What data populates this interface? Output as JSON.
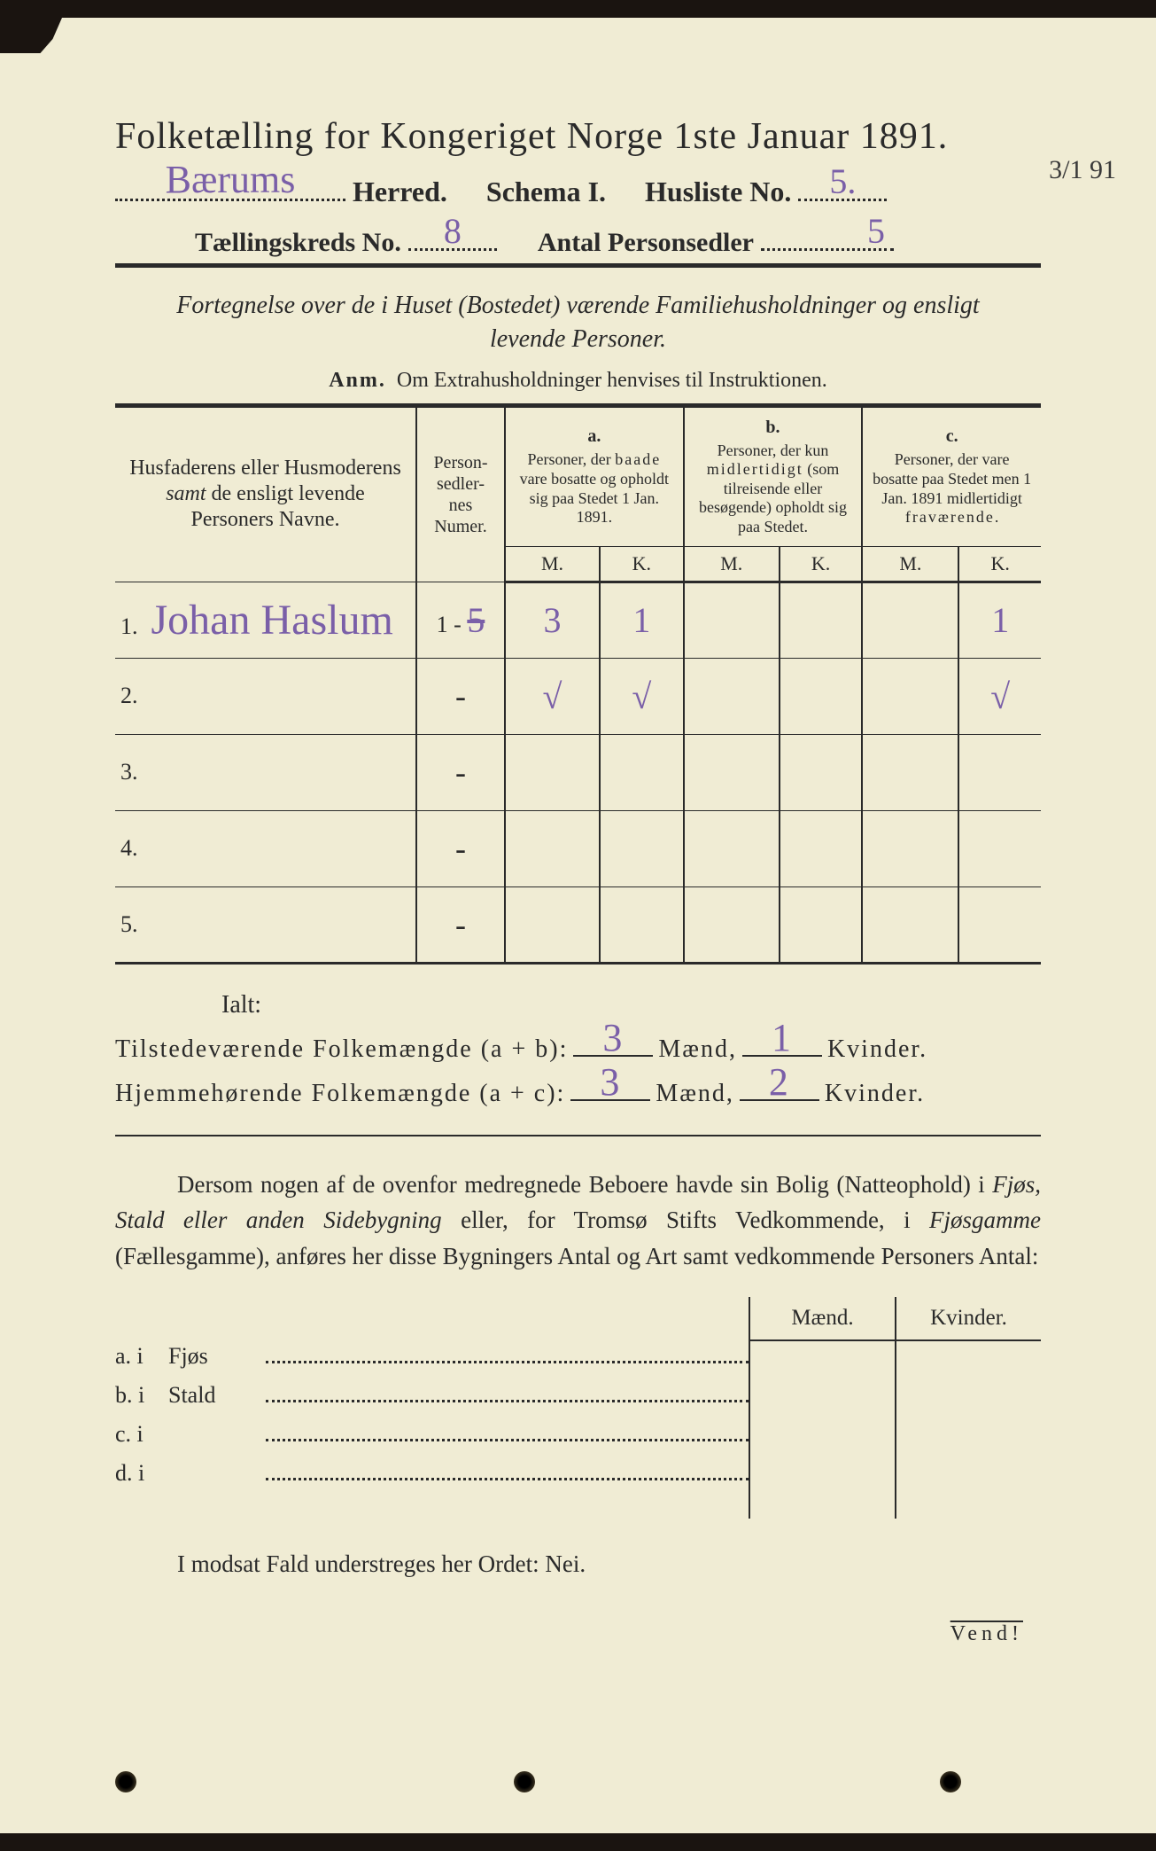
{
  "colors": {
    "paper": "#f0ecd4",
    "ink": "#2a2a2a",
    "handwriting": "#7a5fa8",
    "background": "#1a1410"
  },
  "typography": {
    "title_fontsize": 42,
    "header_fontsize": 32,
    "body_fontsize": 27,
    "hand_fontsize": 44
  },
  "margin_note": "3/1 91",
  "header": {
    "title": "Folketælling for Kongeriget Norge 1ste Januar 1891.",
    "herred_label": "Herred.",
    "herred_value": "Bærums",
    "schema_label": "Schema I.",
    "husliste_label": "Husliste No.",
    "husliste_value": "5.",
    "kreds_label": "Tællingskreds No.",
    "kreds_value": "8",
    "antal_label": "Antal Personsedler",
    "antal_value": "5"
  },
  "subtitle": "Fortegnelse over de i Huset (Bostedet) værende Familiehusholdninger og ensligt levende Personer.",
  "anm_label": "Anm.",
  "anm_text": "Om Extrahusholdninger henvises til Instruktionen.",
  "table": {
    "col_names": "Husfaderens eller Husmoderens <em>samt</em> de ensligt levende Personers Navne.",
    "col_num": "Person-<br>sedler-<br>nes<br>Numer.",
    "col_a_label": "a.",
    "col_a": "Personer, der <span class='spaced'>baade</span> vare bosatte og opholdt sig paa Stedet 1 Jan. 1891.",
    "col_b_label": "b.",
    "col_b": "Personer, der kun <span class='spaced'>midlertidigt</span> (som tilreisende eller besøgende) opholdt sig paa Stedet.",
    "col_c_label": "c.",
    "col_c": "Personer, der vare bosatte paa Stedet men 1 Jan. 1891 midlertidigt <span class='spaced'>fraværende</span>.",
    "mk_m": "M.",
    "mk_k": "K.",
    "rows": [
      {
        "n": "1.",
        "name": "Johan Haslum",
        "num_print": "1 -",
        "num_hand": "5",
        "a_m": "3",
        "a_k": "1",
        "b_m": "",
        "b_k": "",
        "c_m": "",
        "c_k": "1"
      },
      {
        "n": "2.",
        "name": "",
        "num_print": "-",
        "num_hand": "",
        "a_m": "√",
        "a_k": "√",
        "b_m": "",
        "b_k": "",
        "c_m": "",
        "c_k": "√"
      },
      {
        "n": "3.",
        "name": "",
        "num_print": "-",
        "num_hand": "",
        "a_m": "",
        "a_k": "",
        "b_m": "",
        "b_k": "",
        "c_m": "",
        "c_k": ""
      },
      {
        "n": "4.",
        "name": "",
        "num_print": "-",
        "num_hand": "",
        "a_m": "",
        "a_k": "",
        "b_m": "",
        "b_k": "",
        "c_m": "",
        "c_k": ""
      },
      {
        "n": "5.",
        "name": "",
        "num_print": "-",
        "num_hand": "",
        "a_m": "",
        "a_k": "",
        "b_m": "",
        "b_k": "",
        "c_m": "",
        "c_k": ""
      }
    ]
  },
  "totals": {
    "ialt": "Ialt:",
    "line1_label": "Tilstedeværende Folkemængde (a + b):",
    "line2_label": "Hjemmehørende Folkemængde (a + c):",
    "maend": "Mænd,",
    "kvinder": "Kvinder.",
    "l1_m": "3",
    "l1_k": "1",
    "l2_m": "3",
    "l2_k": "2"
  },
  "paragraph": "Dersom nogen af de ovenfor medregnede Beboere havde sin Bolig (Natteophold) i <em>Fjøs, Stald eller anden Sidebygning</em> eller, for Tromsø Stifts Vedkommende, i <em>Fjøsgamme</em> (Fællesgamme), anføres her disse Bygningers Antal og Art samt vedkommende Personers Antal:",
  "lower": {
    "maend": "Mænd.",
    "kvinder": "Kvinder.",
    "rows": [
      {
        "lab": "a.  i",
        "txt": "Fjøs"
      },
      {
        "lab": "b.  i",
        "txt": "Stald"
      },
      {
        "lab": "c.  i",
        "txt": ""
      },
      {
        "lab": "d.  i",
        "txt": ""
      }
    ]
  },
  "nej": "I modsat Fald understreges her Ordet: Nei.",
  "vend": "Vend!"
}
